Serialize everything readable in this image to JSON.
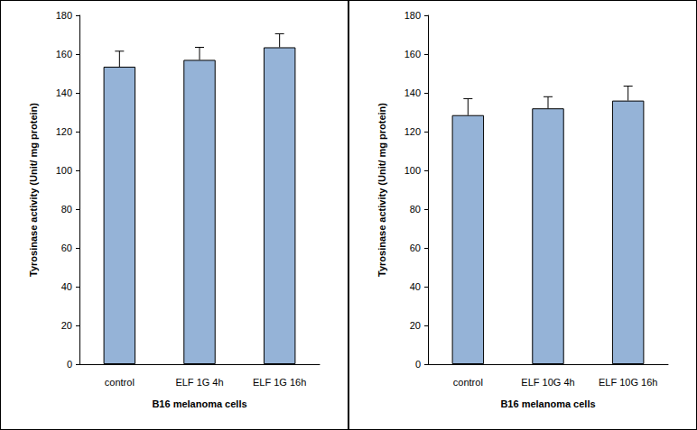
{
  "chart_data": [
    {
      "type": "bar",
      "categories": [
        "control",
        "ELF 1G 4h",
        "ELF 1G 16h"
      ],
      "values": [
        153.5,
        157,
        163.5
      ],
      "errors": [
        8,
        6.5,
        7
      ],
      "color": "#95b3d7",
      "xlabel": "B16 melanoma cells",
      "ylabel": "Tyrosinase activity (Unit/ mg protein)",
      "ylim": [
        0,
        180
      ],
      "yticks": [
        0,
        20,
        40,
        60,
        80,
        100,
        120,
        140,
        160,
        180
      ],
      "grid": false
    },
    {
      "type": "bar",
      "categories": [
        "control",
        "ELF 10G 4h",
        "ELF 10G 16h"
      ],
      "values": [
        128.5,
        132,
        136
      ],
      "errors": [
        8.5,
        6,
        7.5
      ],
      "color": "#95b3d7",
      "xlabel": "B16 melanoma cells",
      "ylabel": "Tyrosinase activity (Unit/ mg protein)",
      "ylim": [
        0,
        180
      ],
      "yticks": [
        0,
        20,
        40,
        60,
        80,
        100,
        120,
        140,
        160,
        180
      ],
      "grid": false
    }
  ]
}
